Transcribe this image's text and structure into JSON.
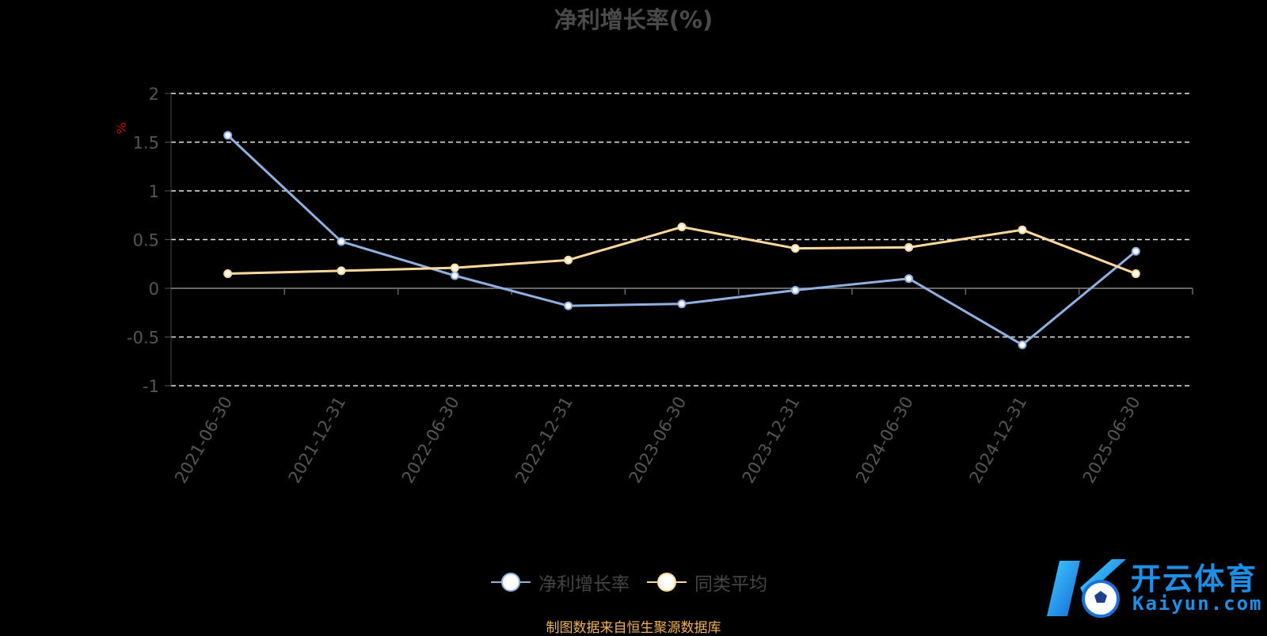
{
  "chart_data": {
    "type": "line",
    "title": "净利增长率(%)",
    "ylabel": "%",
    "xlabel": "",
    "categories": [
      "2021-06-30",
      "2021-12-31",
      "2022-06-30",
      "2022-12-31",
      "2023-06-30",
      "2023-12-31",
      "2024-06-30",
      "2024-12-31",
      "2025-06-30"
    ],
    "ylim": [
      -1,
      2
    ],
    "yticks": [
      "2",
      "1.5",
      "1",
      "0.5",
      "0",
      "-0.5",
      "-1"
    ],
    "series": [
      {
        "name": "净利增长率",
        "color": "#8fb0e0",
        "values": [
          1.57,
          0.48,
          0.13,
          -0.18,
          -0.16,
          -0.02,
          0.1,
          -0.58,
          0.38
        ]
      },
      {
        "name": "同类平均",
        "color": "#ffd99b",
        "values": [
          0.15,
          0.18,
          0.21,
          0.29,
          0.63,
          0.41,
          0.42,
          0.6,
          0.15
        ]
      }
    ],
    "grid": true,
    "legend_position": "bottom-center"
  },
  "source_note": "制图数据来自恒生聚源数据库",
  "watermark": {
    "cn": "开云体育",
    "en": "Kaiyun.com"
  }
}
